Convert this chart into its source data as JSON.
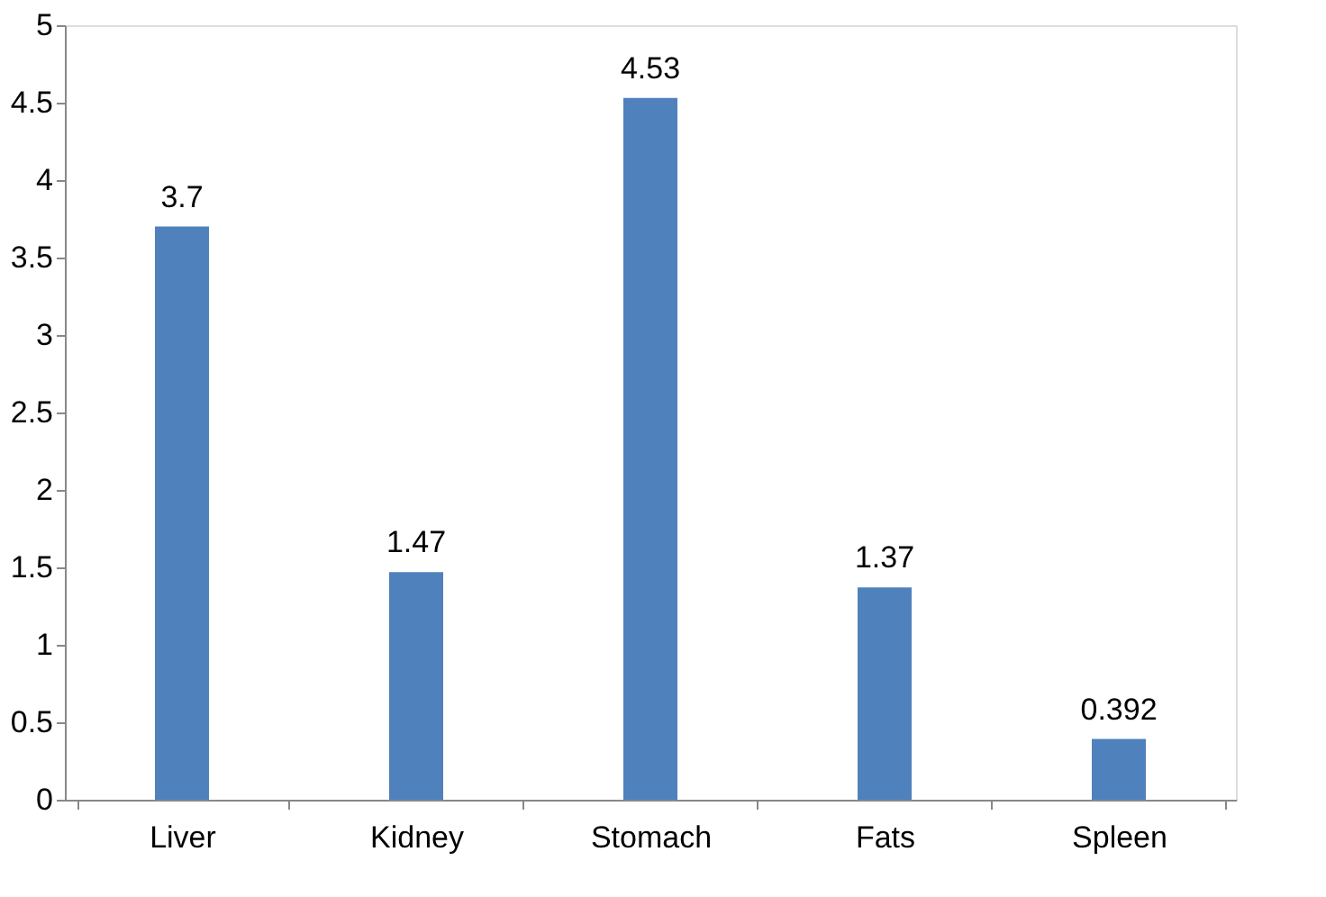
{
  "chart_data": {
    "type": "bar",
    "categories": [
      "Liver",
      "Kidney",
      "Stomach",
      "Fats",
      "Spleen"
    ],
    "values": [
      3.7,
      1.47,
      4.53,
      1.37,
      0.392
    ],
    "color": "#4f81bd",
    "ylim": [
      0,
      5
    ],
    "yticks": [
      0,
      0.5,
      1,
      1.5,
      2,
      2.5,
      3,
      3.5,
      4,
      4.5,
      5
    ],
    "grid": false,
    "data_labels": true
  }
}
